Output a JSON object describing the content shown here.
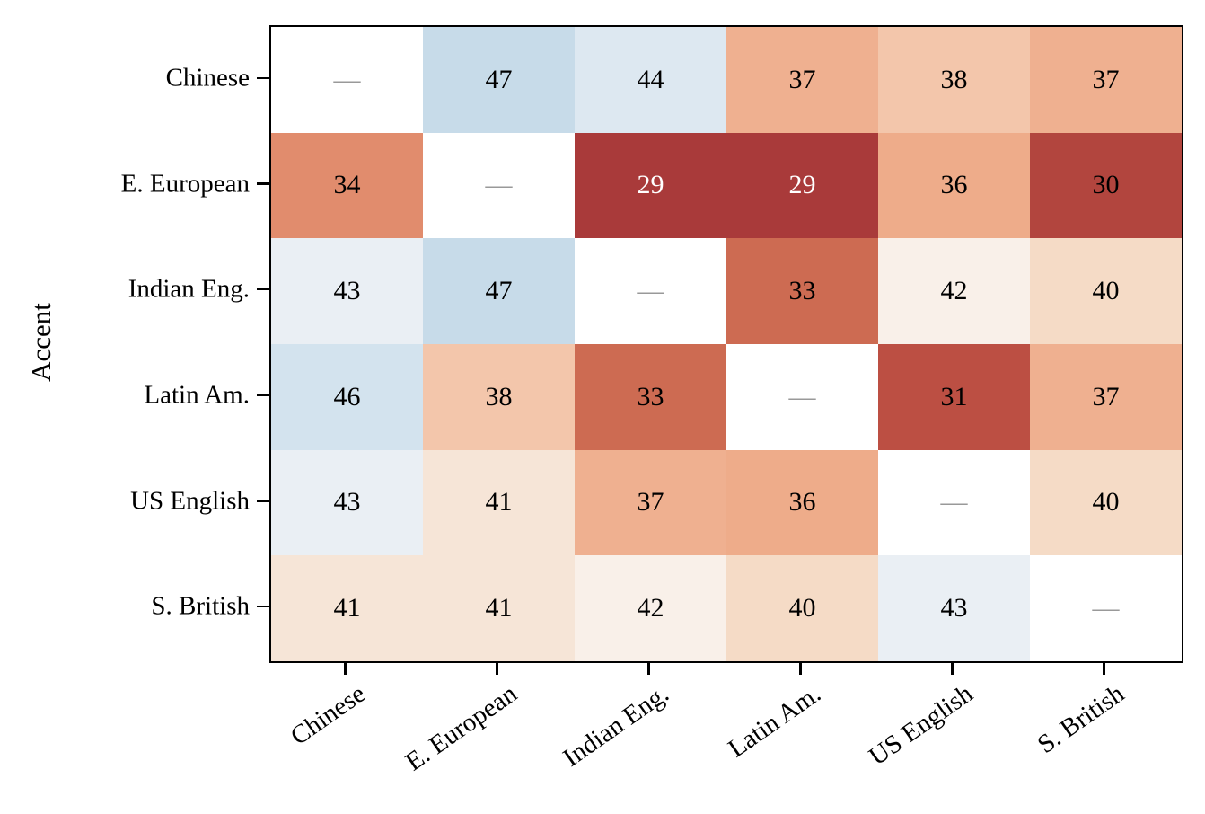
{
  "chart_data": {
    "type": "heatmap",
    "title": "",
    "xlabel": "",
    "ylabel": "Accent",
    "legend": "none",
    "grid": false,
    "categories": [
      "Chinese",
      "E. European",
      "Indian Eng.",
      "Latin Am.",
      "US English",
      "S. British"
    ],
    "rows": [
      "Chinese",
      "E. European",
      "Indian Eng.",
      "Latin Am.",
      "US English",
      "S. British"
    ],
    "matrix": [
      [
        null,
        47,
        44,
        37,
        38,
        37
      ],
      [
        34,
        null,
        29,
        29,
        36,
        30
      ],
      [
        43,
        47,
        null,
        33,
        42,
        40
      ],
      [
        46,
        38,
        33,
        null,
        31,
        37
      ],
      [
        43,
        41,
        37,
        36,
        null,
        40
      ],
      [
        41,
        41,
        42,
        40,
        43,
        null
      ]
    ],
    "diagonal_marker": "—",
    "diagonal_marker_color": "#999999",
    "diagonal_bg": "#ffffff",
    "colormap": "diverging red-white-blue (RdBu-like), low=dark red, high=light blue",
    "value_range_observed": [
      29,
      47
    ],
    "value_colors": {
      "29": {
        "bg": "#a93a3a",
        "fg": "#ffffff"
      },
      "30": {
        "bg": "#b2453e",
        "fg": "#000000"
      },
      "31": {
        "bg": "#bc4f43",
        "fg": "#000000"
      },
      "33": {
        "bg": "#cd6b52",
        "fg": "#000000"
      },
      "34": {
        "bg": "#e18c6d",
        "fg": "#000000"
      },
      "36": {
        "bg": "#eeac8a",
        "fg": "#000000"
      },
      "37": {
        "bg": "#efb090",
        "fg": "#000000"
      },
      "38": {
        "bg": "#f3c6ab",
        "fg": "#000000"
      },
      "40": {
        "bg": "#f5dbc6",
        "fg": "#000000"
      },
      "41": {
        "bg": "#f6e5d7",
        "fg": "#000000"
      },
      "42": {
        "bg": "#f9f0e9",
        "fg": "#000000"
      },
      "43": {
        "bg": "#eaeff4",
        "fg": "#000000"
      },
      "44": {
        "bg": "#dde8f1",
        "fg": "#000000"
      },
      "46": {
        "bg": "#d3e3ee",
        "fg": "#000000"
      },
      "47": {
        "bg": "#c7dbe9",
        "fg": "#000000"
      }
    },
    "axis_color": "#000000"
  }
}
